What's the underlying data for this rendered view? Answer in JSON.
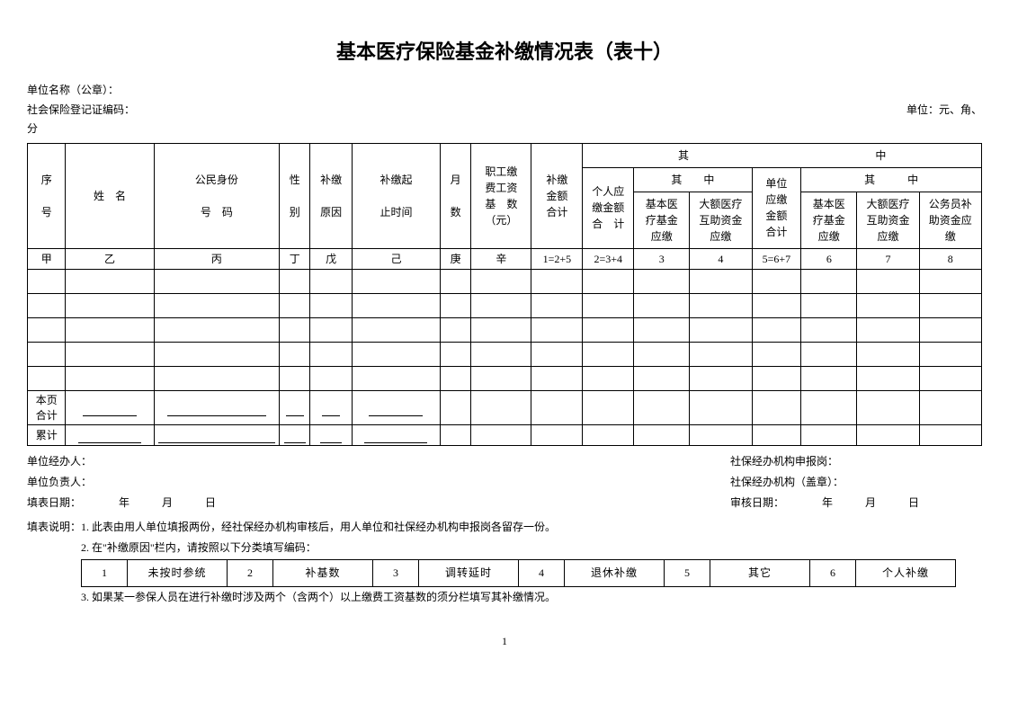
{
  "title": "基本医疗保险基金补缴情况表（表十）",
  "meta": {
    "unit_name_label": "单位名称（公章）：",
    "reg_code_label": "社会保险登记证编码：",
    "unit_label": "单位：元、角、",
    "unit_label2": "分"
  },
  "headers": {
    "seq": "序\n\n号",
    "name": "姓　名",
    "idno": "公民身份\n\n号　码",
    "gender": "性\n\n别",
    "reason": "补缴\n\n原因",
    "period": "补缴起\n\n止时间",
    "months": "月\n\n数",
    "wage_base": "职工缴\n费工资\n基　数\n（元）",
    "total": "补缴\n金额\n合计",
    "qizhong": "其",
    "zhong": "中",
    "person_total": "个人应\n缴金额\n合　计",
    "qizhong2": "其　　中",
    "basic_med": "基本医\n疗基金\n应缴",
    "large_med": "大额医疗\n互助资金\n应缴",
    "unit_total": "单位\n应缴\n金额\n合计",
    "qizhong3": "其　　　中",
    "basic_med2": "基本医\n疗基金\n应缴",
    "large_med2": "大额医疗\n互助资金\n应缴",
    "gov_sup": "公务员补\n助资金应\n缴"
  },
  "label_row": [
    "甲",
    "乙",
    "丙",
    "丁",
    "戊",
    "己",
    "庚",
    "辛",
    "1=2+5",
    "2=3+4",
    "3",
    "4",
    "5=6+7",
    "6",
    "7",
    "8"
  ],
  "summary": {
    "page_total": "本页\n合计",
    "cum_total": "累计"
  },
  "footer": {
    "handler": "单位经办人：",
    "principal": "单位负责人：",
    "fill_date": "填表日期：　　　　年　　　月　　　日",
    "agency_post": "社保经办机构申报岗：",
    "agency_seal": "社保经办机构（盖章）：",
    "audit_date": "审核日期：　　　　年　　　月　　　日"
  },
  "notes": {
    "n1": "填表说明：1. 此表由用人单位填报两份，经社保经办机构审核后，用人单位和社保经办机构申报岗各留存一份。",
    "n2": "2. 在\"补缴原因\"栏内，请按照以下分类填写编码：",
    "n3": "3. 如果某一参保人员在进行补缴时涉及两个（含两个）以上缴费工资基数的须分栏填写其补缴情况。"
  },
  "codes": [
    {
      "num": "1",
      "label": "未按时参统"
    },
    {
      "num": "2",
      "label": "补基数"
    },
    {
      "num": "3",
      "label": "调转延时"
    },
    {
      "num": "4",
      "label": "退休补缴"
    },
    {
      "num": "5",
      "label": "其它"
    },
    {
      "num": "6",
      "label": "个人补缴"
    }
  ],
  "page_number": "1",
  "uline_widths": {
    "w1": 60,
    "w2": 110,
    "w3": 20,
    "w4": 20,
    "w5": 60,
    "c1": 70,
    "c2": 130,
    "c3": 24,
    "c4": 24,
    "c5": 70
  }
}
